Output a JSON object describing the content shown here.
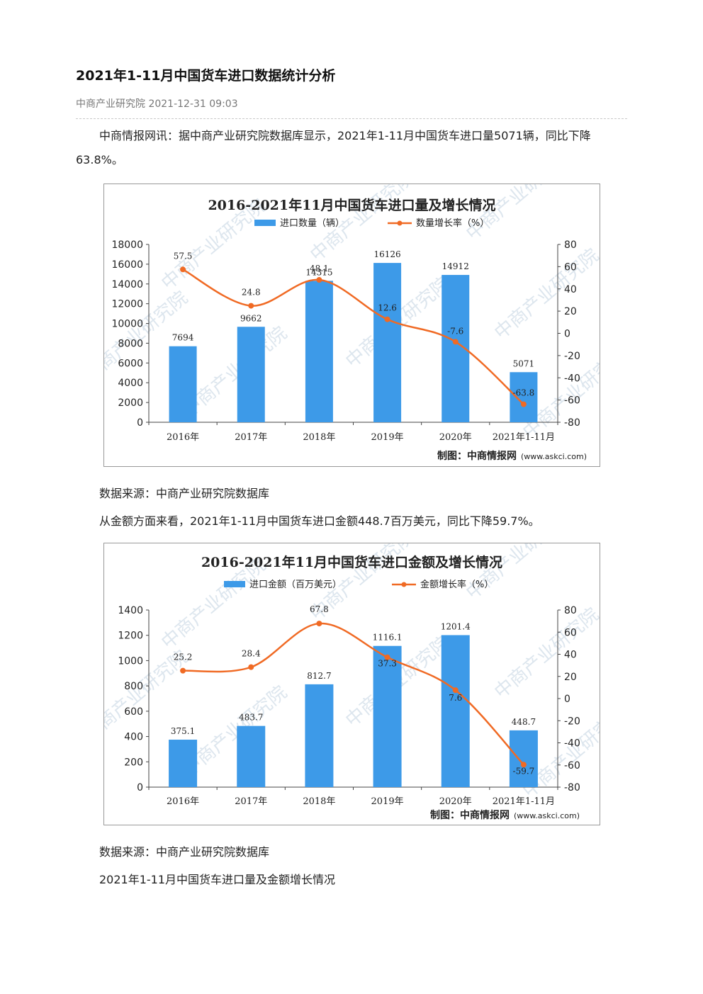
{
  "article": {
    "title": "2021年1-11月中国货车进口数据统计分析",
    "source": "中商产业研究院",
    "datetime": "2021-12-31 09:03",
    "intro": "中商情报网讯：据中商产业研究院数据库显示，2021年1-11月中国货车进口量5071辆，同比下降63.8%。",
    "source_note_1": "数据来源：中商产业研究院数据库",
    "amount_text": "从金额方面来看，2021年1-11月中国货车进口金额448.7百万美元，同比下降59.7%。",
    "source_note_2": "数据来源：中商产业研究院数据库",
    "summary": "2021年1-11月中国货车进口量及金额增长情况"
  },
  "colors": {
    "bar": "#3d9ae8",
    "line": "#f06a24",
    "watermark": "#dde6ee"
  },
  "watermark": "中商产业研究院",
  "chart_data": [
    {
      "type": "bar",
      "title": "2016-2021年11月中国货车进口量及增长情况",
      "categories": [
        "2016年",
        "2017年",
        "2018年",
        "2019年",
        "2020年",
        "2021年1-11月"
      ],
      "series": [
        {
          "name": "进口数量（辆）",
          "type": "bar",
          "axis": "left",
          "values": [
            7694,
            9662,
            14315,
            16126,
            14912,
            5071
          ],
          "labels": [
            "7694",
            "9662",
            "14315",
            "16126",
            "14912",
            "5071"
          ]
        },
        {
          "name": "数量增长率（%）",
          "type": "line",
          "axis": "right",
          "values": [
            57.5,
            24.8,
            48.1,
            12.6,
            -7.6,
            -63.8
          ],
          "labels": [
            "57.5",
            "24.8",
            "48.1",
            "12.6",
            "-7.6",
            "-63.8"
          ]
        }
      ],
      "ylim_left": [
        0,
        18000
      ],
      "yticks_left": [
        "0",
        "2000",
        "4000",
        "6000",
        "8000",
        "10000",
        "12000",
        "14000",
        "16000",
        "18000"
      ],
      "ylim_right": [
        -80,
        80
      ],
      "yticks_right": [
        "-80",
        "-60",
        "-40",
        "-20",
        "0",
        "20",
        "40",
        "60",
        "80"
      ],
      "legend": "top-center",
      "footer": "制图：中商情报网",
      "footer_url": "(www.askci.com)"
    },
    {
      "type": "bar",
      "title": "2016-2021年11月中国货车进口金额及增长情况",
      "categories": [
        "2016年",
        "2017年",
        "2018年",
        "2019年",
        "2020年",
        "2021年1-11月"
      ],
      "series": [
        {
          "name": "进口金额（百万美元）",
          "type": "bar",
          "axis": "left",
          "values": [
            375.1,
            483.7,
            812.7,
            1116.1,
            1201.4,
            448.7
          ],
          "labels": [
            "375.1",
            "483.7",
            "812.7",
            "1116.1",
            "1201.4",
            "448.7"
          ]
        },
        {
          "name": "金额增长率（%）",
          "type": "line",
          "axis": "right",
          "values": [
            25.2,
            28.4,
            67.8,
            37.3,
            7.6,
            -59.7
          ],
          "labels": [
            "25.2",
            "28.4",
            "67.8",
            "37.3",
            "7.6",
            "-59.7"
          ]
        }
      ],
      "ylim_left": [
        0,
        1400
      ],
      "yticks_left": [
        "0",
        "200",
        "400",
        "600",
        "800",
        "1000",
        "1200",
        "1400"
      ],
      "ylim_right": [
        -80,
        80
      ],
      "yticks_right": [
        "-80",
        "-60",
        "-40",
        "-20",
        "0",
        "20",
        "40",
        "60",
        "80"
      ],
      "legend": "top-center",
      "footer": "制图：中商情报网",
      "footer_url": "(www.askci.com)"
    }
  ]
}
